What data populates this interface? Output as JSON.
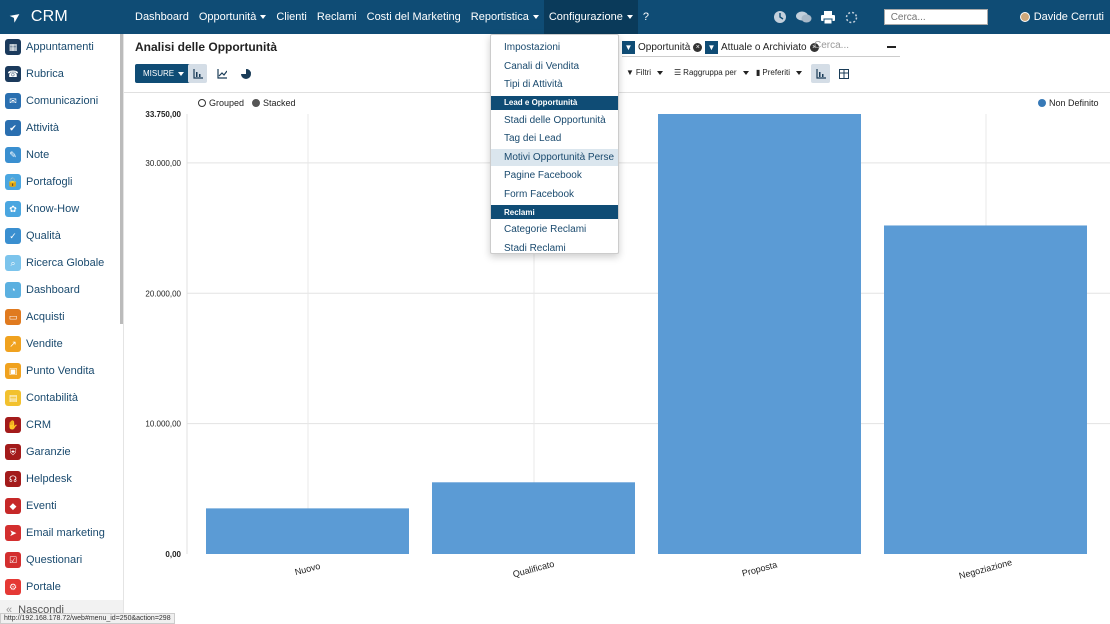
{
  "app": {
    "name": "CRM"
  },
  "topmenu": [
    {
      "label": "Dashboard",
      "caret": false
    },
    {
      "label": "Opportunità",
      "caret": true
    },
    {
      "label": "Clienti",
      "caret": false
    },
    {
      "label": "Reclami",
      "caret": false
    },
    {
      "label": "Costi del Marketing",
      "caret": false
    },
    {
      "label": "Reportistica",
      "caret": true
    },
    {
      "label": "Configurazione",
      "caret": true
    },
    {
      "label": "?",
      "caret": false
    }
  ],
  "topbar": {
    "search_placeholder": "Cerca...",
    "user_name": "Davide Cerruti"
  },
  "sidebar": {
    "items": [
      {
        "label": "Appuntamenti",
        "icon": "calendar-icon",
        "color": "#1b3a5c"
      },
      {
        "label": "Rubrica",
        "icon": "contacts-icon",
        "color": "#1b3a5c"
      },
      {
        "label": "Comunicazioni",
        "icon": "chat-icon",
        "color": "#2a6fb0"
      },
      {
        "label": "Attività",
        "icon": "checkbox-icon",
        "color": "#2a6fb0"
      },
      {
        "label": "Note",
        "icon": "note-icon",
        "color": "#3a8fd0"
      },
      {
        "label": "Portafogli",
        "icon": "lock-icon",
        "color": "#4aa6e0"
      },
      {
        "label": "Know-How",
        "icon": "brain-icon",
        "color": "#4aa6e0"
      },
      {
        "label": "Qualità",
        "icon": "quality-icon",
        "color": "#3a8fd0"
      },
      {
        "label": "Ricerca Globale",
        "icon": "search-icon",
        "color": "#7cc4ec"
      },
      {
        "label": "Dashboard",
        "icon": "dashboard-icon",
        "color": "#5bb0e0"
      },
      {
        "label": "Acquisti",
        "icon": "card-icon",
        "color": "#e07a1f"
      },
      {
        "label": "Vendite",
        "icon": "chart-icon",
        "color": "#f0a21f"
      },
      {
        "label": "Punto Vendita",
        "icon": "monitor-icon",
        "color": "#f0a21f"
      },
      {
        "label": "Contabilità",
        "icon": "document-icon",
        "color": "#f2c12e"
      },
      {
        "label": "CRM",
        "icon": "handshake-icon",
        "color": "#a31b1b"
      },
      {
        "label": "Garanzie",
        "icon": "shield-icon",
        "color": "#a31b1b"
      },
      {
        "label": "Helpdesk",
        "icon": "headset-icon",
        "color": "#a31b1b"
      },
      {
        "label": "Eventi",
        "icon": "ticket-icon",
        "color": "#c62828"
      },
      {
        "label": "Email marketing",
        "icon": "send-icon",
        "color": "#d32f2f"
      },
      {
        "label": "Questionari",
        "icon": "survey-icon",
        "color": "#d32f2f"
      },
      {
        "label": "Portale",
        "icon": "portal-icon",
        "color": "#e53935"
      }
    ],
    "hide_label": "Nascondi"
  },
  "view": {
    "title": "Analisi delle Opportunità",
    "measures_label": "MISURE",
    "facets": [
      "Opportunità",
      "Attuale o Archiviato"
    ],
    "search_placeholder": "Cerca...",
    "filters_label": "Filtri",
    "groupby_label": "Raggruppa per",
    "favorites_label": "Preferiti",
    "grouped_label": "Grouped",
    "stacked_label": "Stacked"
  },
  "dropdown": {
    "items": [
      {
        "type": "item",
        "label": "Impostazioni"
      },
      {
        "type": "item",
        "label": "Canali di Vendita"
      },
      {
        "type": "item",
        "label": "Tipi di Attività"
      },
      {
        "type": "header",
        "label": "Lead e Opportunità"
      },
      {
        "type": "item",
        "label": "Stadi delle Opportunità"
      },
      {
        "type": "item",
        "label": "Tag dei Lead"
      },
      {
        "type": "item",
        "label": "Motivi Opportunità Perse",
        "highlighted": true
      },
      {
        "type": "item",
        "label": "Pagine Facebook"
      },
      {
        "type": "item",
        "label": "Form Facebook"
      },
      {
        "type": "header",
        "label": "Reclami"
      },
      {
        "type": "item",
        "label": "Categorie Reclami"
      },
      {
        "type": "item",
        "label": "Stadi Reclami"
      }
    ]
  },
  "chart_data": {
    "type": "bar",
    "categories": [
      "Nuovo",
      "Qualificato",
      "Proposta",
      "Negoziazione"
    ],
    "series": [
      {
        "name": "Non Definito",
        "values": [
          3500,
          5500,
          33750,
          25200
        ],
        "color": "#5b9bd5"
      }
    ],
    "yticks": [
      "0,00",
      "10.000,00",
      "20.000,00",
      "30.000,00",
      "33.750,00"
    ],
    "ytick_values": [
      0,
      10000,
      20000,
      30000,
      33750
    ],
    "ylim": [
      0,
      33750
    ],
    "grid": true,
    "legend_position": "top-right"
  },
  "statusbar": {
    "url": "http://192.168.178.72/web#menu_id=250&action=298"
  }
}
